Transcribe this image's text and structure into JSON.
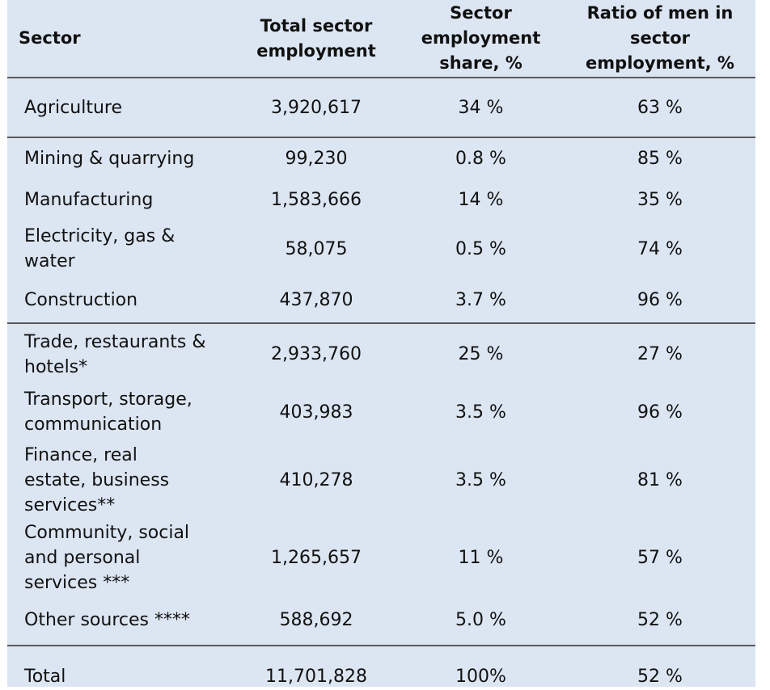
{
  "headers": {
    "sector": "Sector",
    "total": "Total sector employment",
    "share": "Sector employment share, %",
    "ratio": "Ratio of men in sector employment, %"
  },
  "rows": [
    {
      "sector": "Agriculture",
      "total": "3,920,617",
      "share": "34 %",
      "ratio": "63 %"
    },
    {
      "sector": "Mining & quarrying",
      "total": "99,230",
      "share": "0.8 %",
      "ratio": "85 %"
    },
    {
      "sector": "Manufacturing",
      "total": "1,583,666",
      "share": "14 %",
      "ratio": "35 %"
    },
    {
      "sector": "Electricity, gas & water",
      "total": "58,075",
      "share": "0.5 %",
      "ratio": "74 %"
    },
    {
      "sector": "Construction",
      "total": "437,870",
      "share": "3.7 %",
      "ratio": "96 %"
    },
    {
      "sector": "Trade, restaurants & hotels*",
      "total": "2,933,760",
      "share": "25 %",
      "ratio": "27 %"
    },
    {
      "sector": "Transport, storage, communication",
      "total": "403,983",
      "share": "3.5 %",
      "ratio": "96 %"
    },
    {
      "sector": "Finance, real estate, business services**",
      "total": "410,278",
      "share": "3.5 %",
      "ratio": "81 %"
    },
    {
      "sector": "Community, social and personal services ***",
      "total": "1,265,657",
      "share": "11 %",
      "ratio": "57 %"
    },
    {
      "sector": "Other sources ****",
      "total": "588,692",
      "share": "5.0 %",
      "ratio": "52 %"
    },
    {
      "sector": "Total",
      "total": "11,701,828",
      "share": "100%",
      "ratio": "52 %"
    }
  ]
}
